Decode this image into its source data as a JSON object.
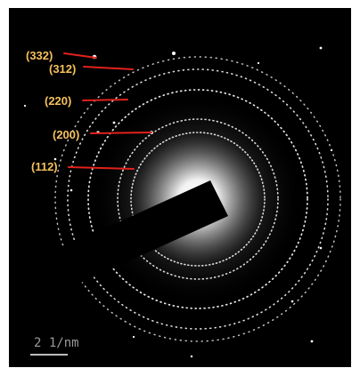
{
  "image": {
    "kind": "electron diffraction ring pattern",
    "background": "#000000",
    "ring_color": "#ffffff",
    "annotation_color": "#f5c15c",
    "pointer_color": "#e2211c",
    "scale_color": "#bdbdbd"
  },
  "labels": [
    {
      "id": "332",
      "text": "(332)"
    },
    {
      "id": "312",
      "text": "(312)"
    },
    {
      "id": "220",
      "text": "(220)"
    },
    {
      "id": "200",
      "text": "(200)"
    },
    {
      "id": "112",
      "text": "(112)"
    }
  ],
  "scale": {
    "text": "2 1/nm"
  }
}
